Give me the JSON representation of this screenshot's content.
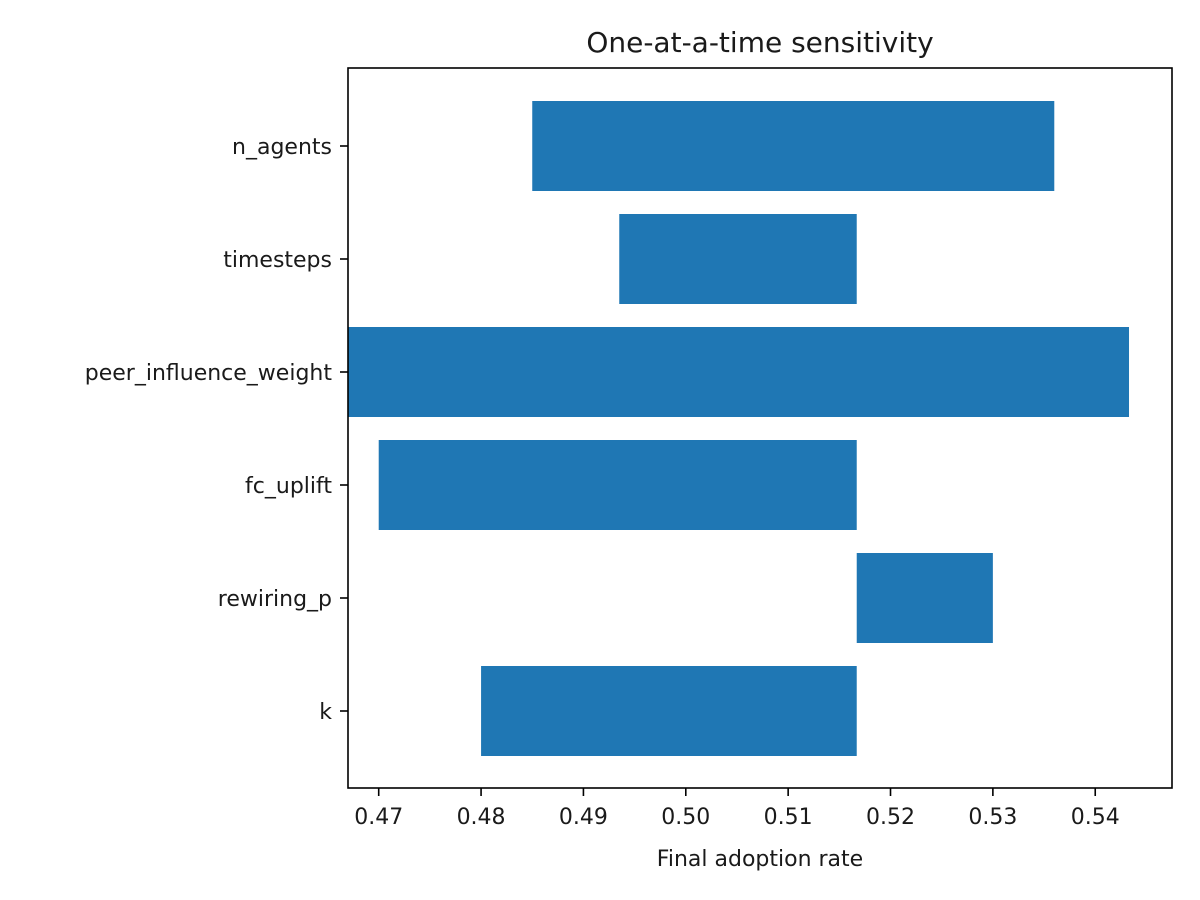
{
  "chart_data": {
    "type": "bar",
    "orientation": "horizontal",
    "title": "One-at-a-time sensitivity",
    "xlabel": "Final adoption rate",
    "ylabel": "",
    "categories": [
      "n_agents",
      "timesteps",
      "peer_influence_weight",
      "fc_uplift",
      "rewiring_p",
      "k"
    ],
    "ranges": [
      {
        "category": "n_agents",
        "low": 0.485,
        "high": 0.536
      },
      {
        "category": "timesteps",
        "low": 0.4935,
        "high": 0.5167
      },
      {
        "category": "peer_influence_weight",
        "low": 0.4667,
        "high": 0.5433
      },
      {
        "category": "fc_uplift",
        "low": 0.47,
        "high": 0.5167
      },
      {
        "category": "rewiring_p",
        "low": 0.5167,
        "high": 0.53
      },
      {
        "category": "k",
        "low": 0.48,
        "high": 0.5167
      }
    ],
    "xlim": [
      0.467,
      0.5475
    ],
    "xticks": [
      0.47,
      0.48,
      0.49,
      0.5,
      0.51,
      0.52,
      0.53,
      0.54
    ],
    "xtick_labels": [
      "0.47",
      "0.48",
      "0.49",
      "0.50",
      "0.51",
      "0.52",
      "0.53",
      "0.54"
    ],
    "bar_color": "#1f77b4",
    "grid": false,
    "legend": "none"
  }
}
